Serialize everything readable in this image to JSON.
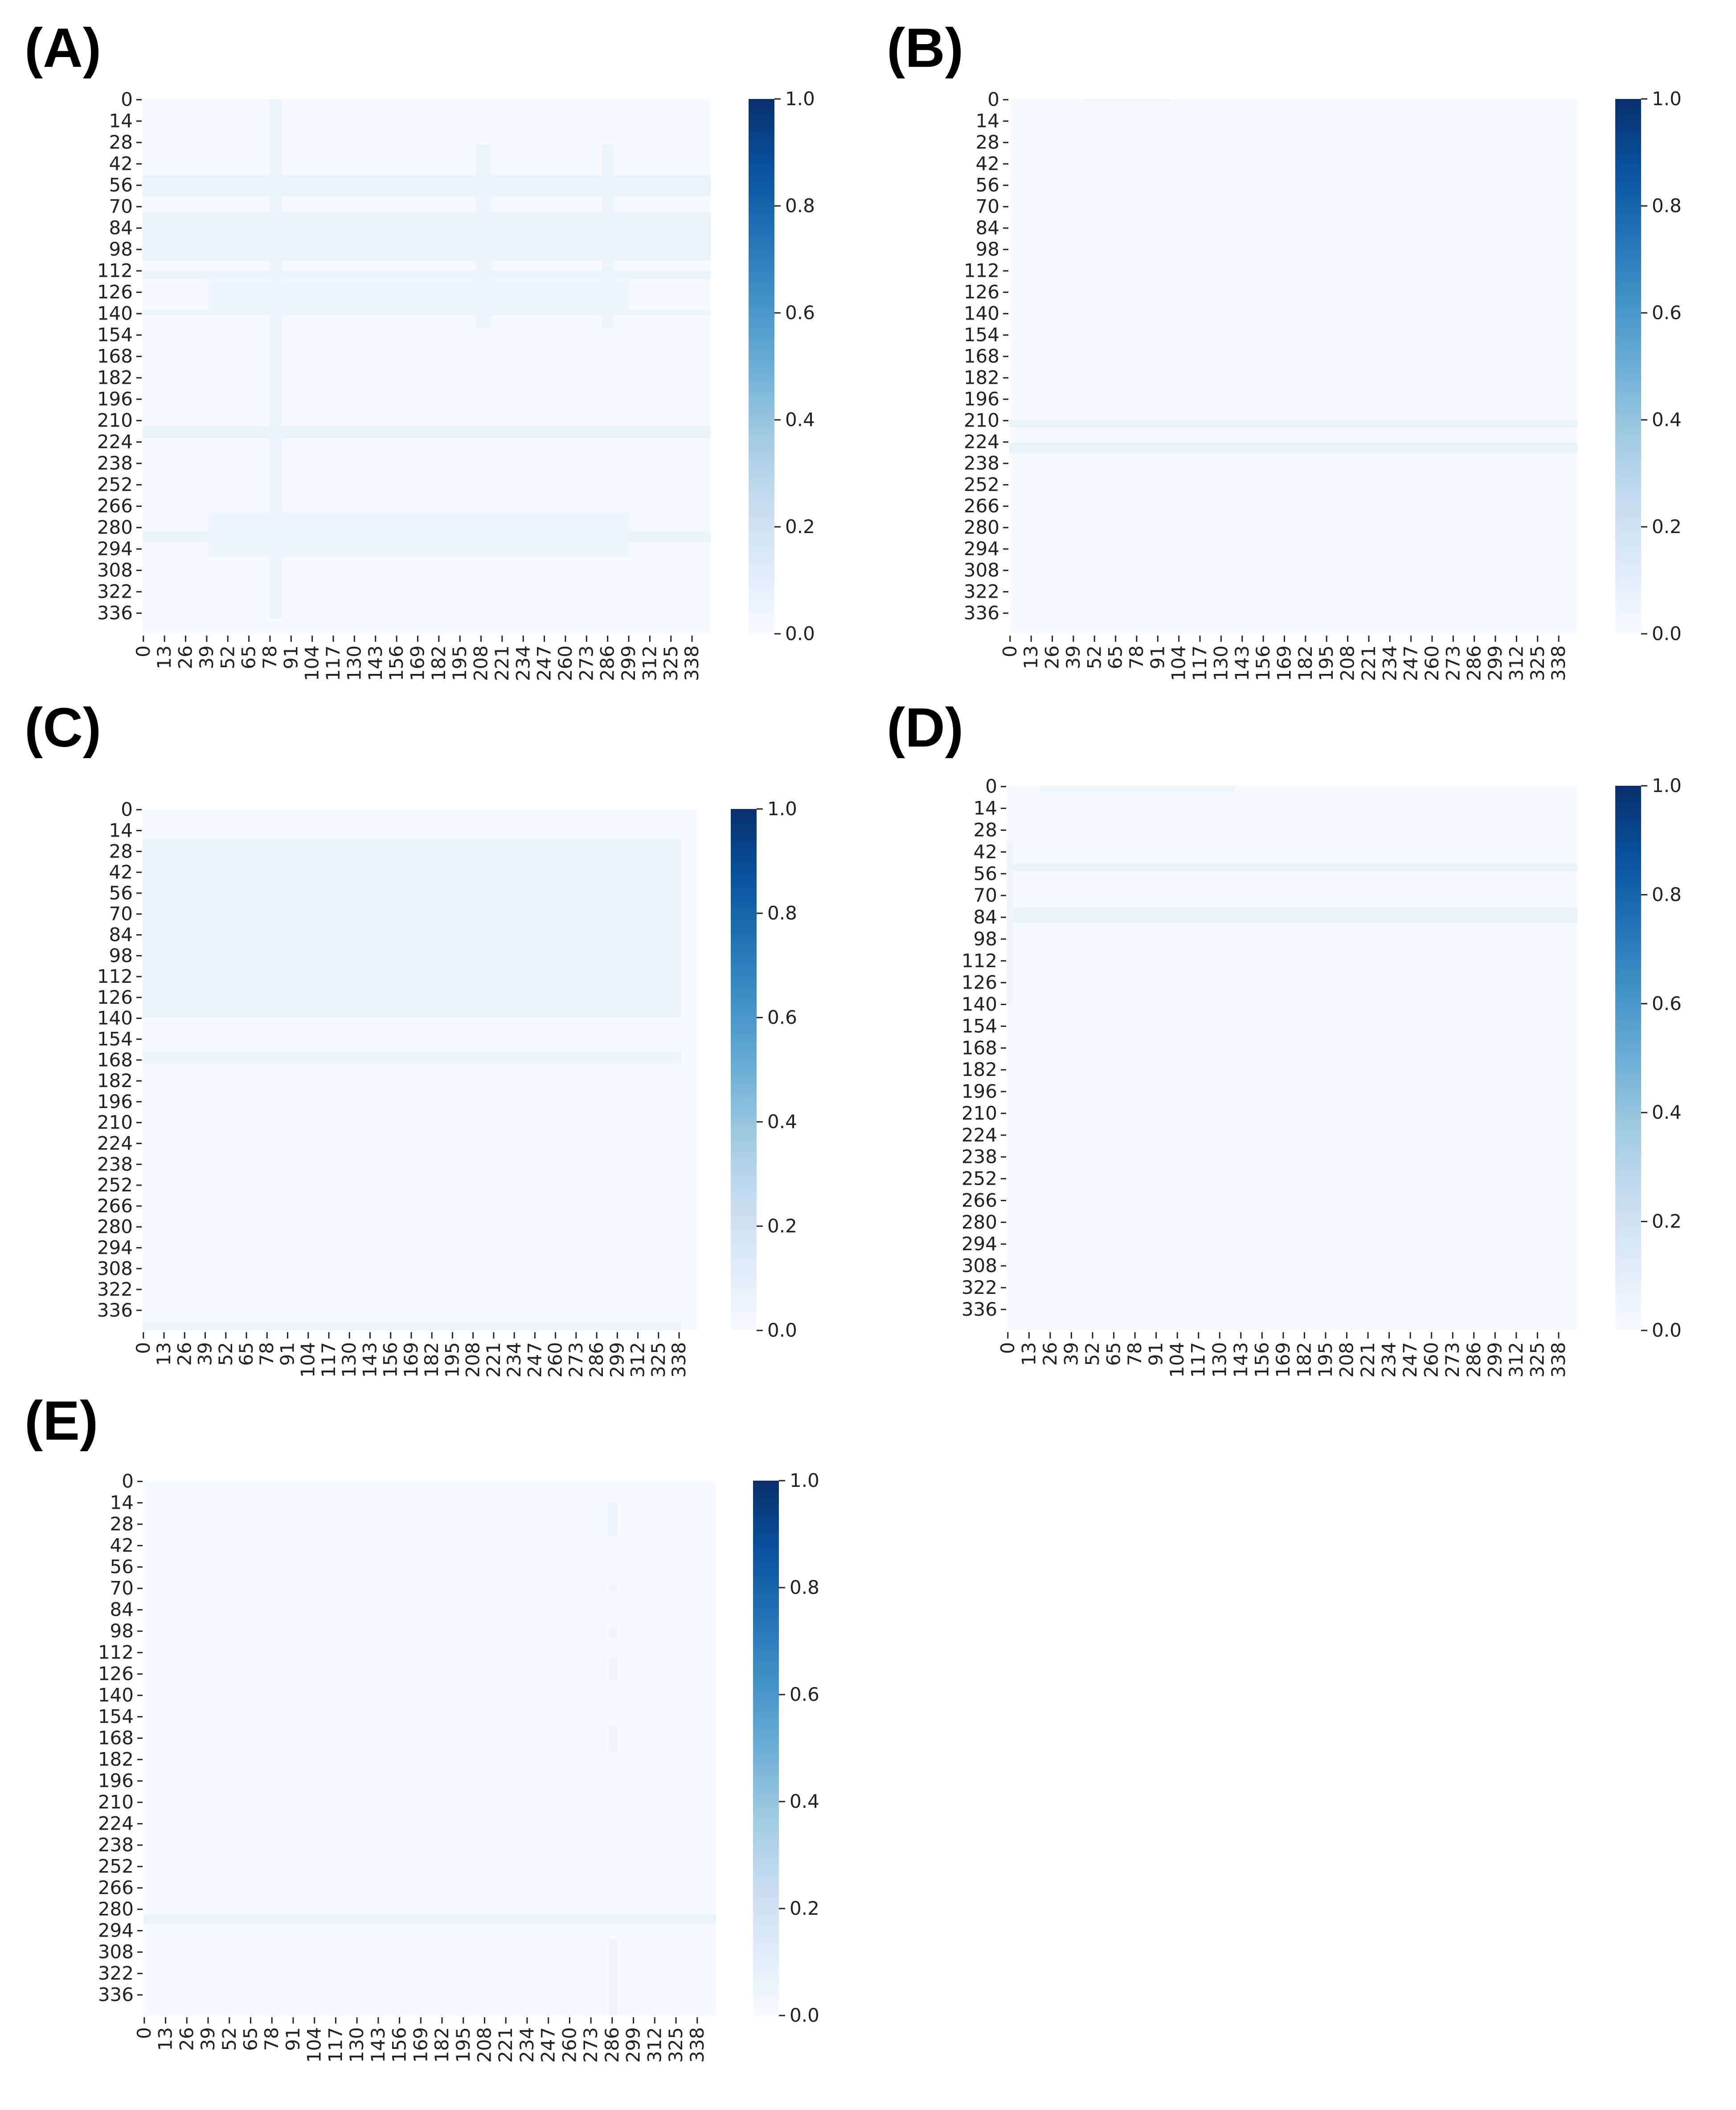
{
  "chart_data": [
    {
      "panel": "(A)",
      "type": "heatmap",
      "y_ticks": [
        "0",
        "14",
        "28",
        "42",
        "56",
        "70",
        "84",
        "98",
        "112",
        "126",
        "140",
        "154",
        "168",
        "182",
        "196",
        "210",
        "224",
        "238",
        "252",
        "266",
        "280",
        "294",
        "308",
        "322",
        "336"
      ],
      "x_ticks": [
        "0",
        "13",
        "26",
        "39",
        "52",
        "65",
        "78",
        "91",
        "104",
        "117",
        "130",
        "143",
        "156",
        "169",
        "182",
        "195",
        "208",
        "221",
        "234",
        "247",
        "260",
        "273",
        "286",
        "299",
        "312",
        "325",
        "338"
      ],
      "colorbar": {
        "ticks": [
          "0.0",
          "0.2",
          "0.4",
          "0.6",
          "0.8",
          "1.0"
        ],
        "range": [
          0,
          1
        ],
        "colormap": "Blues"
      },
      "matrix_size": 350,
      "bands": [
        {
          "y0": 50,
          "y1": 64,
          "x0": 0,
          "x1": 350,
          "value": 0.08
        },
        {
          "y0": 74,
          "y1": 106,
          "x0": 0,
          "x1": 350,
          "value": 0.08
        },
        {
          "y0": 112,
          "y1": 118,
          "x0": 0,
          "x1": 350,
          "value": 0.07
        },
        {
          "y0": 138,
          "y1": 142,
          "x0": 0,
          "x1": 350,
          "value": 0.06
        },
        {
          "y0": 214,
          "y1": 222,
          "x0": 0,
          "x1": 350,
          "value": 0.08
        },
        {
          "y0": 283,
          "y1": 290,
          "x0": 0,
          "x1": 350,
          "value": 0.08
        },
        {
          "y0": 0,
          "y1": 340,
          "x0": 78,
          "x1": 86,
          "value": 0.06
        },
        {
          "y0": 30,
          "y1": 150,
          "x0": 205,
          "x1": 215,
          "value": 0.06
        },
        {
          "y0": 30,
          "y1": 150,
          "x0": 283,
          "x1": 290,
          "value": 0.06
        },
        {
          "y0": 118,
          "y1": 138,
          "x0": 40,
          "x1": 300,
          "value": 0.05
        },
        {
          "y0": 270,
          "y1": 300,
          "x0": 40,
          "x1": 300,
          "value": 0.05
        }
      ]
    },
    {
      "panel": "(B)",
      "type": "heatmap",
      "y_ticks": [
        "0",
        "14",
        "28",
        "42",
        "56",
        "70",
        "84",
        "98",
        "112",
        "126",
        "140",
        "154",
        "168",
        "182",
        "196",
        "210",
        "224",
        "238",
        "252",
        "266",
        "280",
        "294",
        "308",
        "322",
        "336"
      ],
      "x_ticks": [
        "0",
        "13",
        "26",
        "39",
        "52",
        "65",
        "78",
        "91",
        "104",
        "117",
        "130",
        "143",
        "156",
        "169",
        "182",
        "195",
        "208",
        "221",
        "234",
        "247",
        "260",
        "273",
        "286",
        "299",
        "312",
        "325",
        "338"
      ],
      "colorbar": {
        "ticks": [
          "0.0",
          "0.2",
          "0.4",
          "0.6",
          "0.8",
          "1.0"
        ],
        "range": [
          0,
          1
        ],
        "colormap": "Blues"
      },
      "matrix_size": 350,
      "bands": [
        {
          "y0": 210,
          "y1": 215,
          "x0": 0,
          "x1": 350,
          "value": 0.08
        },
        {
          "y0": 225,
          "y1": 232,
          "x0": 0,
          "x1": 350,
          "value": 0.08
        },
        {
          "y0": 0,
          "y1": 2,
          "x0": 45,
          "x1": 100,
          "value": 0.04
        }
      ]
    },
    {
      "panel": "(C)",
      "type": "heatmap",
      "y_ticks": [
        "0",
        "14",
        "28",
        "42",
        "56",
        "70",
        "84",
        "98",
        "112",
        "126",
        "140",
        "154",
        "168",
        "182",
        "196",
        "210",
        "224",
        "238",
        "252",
        "266",
        "280",
        "294",
        "308",
        "322",
        "336"
      ],
      "x_ticks": [
        "0",
        "13",
        "26",
        "39",
        "52",
        "65",
        "78",
        "91",
        "104",
        "117",
        "130",
        "143",
        "156",
        "169",
        "182",
        "195",
        "208",
        "221",
        "234",
        "247",
        "260",
        "273",
        "286",
        "299",
        "312",
        "325",
        "338"
      ],
      "colorbar": {
        "ticks": [
          "0.0",
          "0.2",
          "0.4",
          "0.6",
          "0.8",
          "1.0"
        ],
        "range": [
          0,
          1
        ],
        "colormap": "Blues"
      },
      "matrix_size": 350,
      "bands": [
        {
          "y0": 20,
          "y1": 140,
          "x0": 0,
          "x1": 340,
          "value": 0.07
        },
        {
          "y0": 163,
          "y1": 172,
          "x0": 0,
          "x1": 340,
          "value": 0.05
        },
        {
          "y0": 345,
          "y1": 350,
          "x0": 0,
          "x1": 340,
          "value": 0.04
        }
      ]
    },
    {
      "panel": "(D)",
      "type": "heatmap",
      "y_ticks": [
        "0",
        "14",
        "28",
        "42",
        "56",
        "70",
        "84",
        "98",
        "112",
        "126",
        "140",
        "154",
        "168",
        "182",
        "196",
        "210",
        "224",
        "238",
        "252",
        "266",
        "280",
        "294",
        "308",
        "322",
        "336"
      ],
      "x_ticks": [
        "0",
        "13",
        "26",
        "39",
        "52",
        "65",
        "78",
        "91",
        "104",
        "117",
        "130",
        "143",
        "156",
        "169",
        "182",
        "195",
        "208",
        "221",
        "234",
        "247",
        "260",
        "273",
        "286",
        "299",
        "312",
        "325",
        "338"
      ],
      "colorbar": {
        "ticks": [
          "0.0",
          "0.2",
          "0.4",
          "0.6",
          "0.8",
          "1.0"
        ],
        "range": [
          0,
          1
        ],
        "colormap": "Blues"
      },
      "matrix_size": 350,
      "bands": [
        {
          "y0": 50,
          "y1": 55,
          "x0": 0,
          "x1": 350,
          "value": 0.08
        },
        {
          "y0": 78,
          "y1": 88,
          "x0": 0,
          "x1": 350,
          "value": 0.08
        },
        {
          "y0": 0,
          "y1": 4,
          "x0": 20,
          "x1": 140,
          "value": 0.04
        },
        {
          "y0": 35,
          "y1": 140,
          "x0": 0,
          "x1": 4,
          "value": 0.05
        }
      ]
    },
    {
      "panel": "(E)",
      "type": "heatmap",
      "y_ticks": [
        "0",
        "14",
        "28",
        "42",
        "56",
        "70",
        "84",
        "98",
        "112",
        "126",
        "140",
        "154",
        "168",
        "182",
        "196",
        "210",
        "224",
        "238",
        "252",
        "266",
        "280",
        "294",
        "308",
        "322",
        "336"
      ],
      "x_ticks": [
        "0",
        "13",
        "26",
        "39",
        "52",
        "65",
        "78",
        "91",
        "104",
        "117",
        "130",
        "143",
        "156",
        "169",
        "182",
        "195",
        "208",
        "221",
        "234",
        "247",
        "260",
        "273",
        "286",
        "299",
        "312",
        "325",
        "338"
      ],
      "colorbar": {
        "ticks": [
          "0.0",
          "0.2",
          "0.4",
          "0.6",
          "0.8",
          "1.0"
        ],
        "range": [
          0,
          1
        ],
        "colormap": "Blues"
      },
      "matrix_size": 350,
      "bands": [
        {
          "y0": 284,
          "y1": 290,
          "x0": 0,
          "x1": 350,
          "value": 0.08
        },
        {
          "y0": 14,
          "y1": 36,
          "x0": 284,
          "x1": 290,
          "value": 0.06
        },
        {
          "y0": 68,
          "y1": 72,
          "x0": 284,
          "x1": 290,
          "value": 0.05
        },
        {
          "y0": 96,
          "y1": 104,
          "x0": 284,
          "x1": 290,
          "value": 0.05
        },
        {
          "y0": 116,
          "y1": 130,
          "x0": 284,
          "x1": 290,
          "value": 0.05
        },
        {
          "y0": 160,
          "y1": 178,
          "x0": 284,
          "x1": 290,
          "value": 0.05
        },
        {
          "y0": 300,
          "y1": 350,
          "x0": 284,
          "x1": 290,
          "value": 0.05
        }
      ]
    }
  ]
}
